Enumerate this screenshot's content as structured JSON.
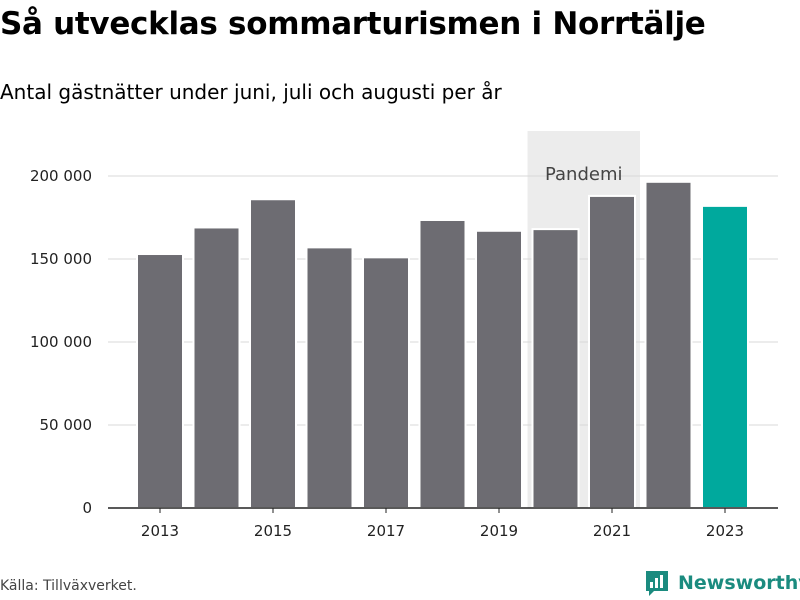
{
  "header": {
    "title": "Så utvecklas sommarturismen i Norrtälje",
    "subtitle": "Antal gästnätter under juni, juli och augusti per år"
  },
  "footer": {
    "source": "Källa: Tillväxverket.",
    "brand": "Newsworthy"
  },
  "colors": {
    "bar": "#6d6c72",
    "highlight": "#00a99d",
    "pandemic_band": "#ececec",
    "grid": "#d9d9d9",
    "axis": "#222222",
    "brand": "#1b8b7f"
  },
  "chart_data": {
    "type": "bar",
    "title": "Så utvecklas sommarturismen i Norrtälje",
    "subtitle": "Antal gästnätter under juni, juli och augusti per år",
    "xlabel": "",
    "ylabel": "",
    "categories": [
      "2013",
      "2014",
      "2015",
      "2016",
      "2017",
      "2018",
      "2019",
      "2020",
      "2021",
      "2022",
      "2023"
    ],
    "values": [
      153000,
      169000,
      186000,
      157000,
      151000,
      173500,
      167000,
      168000,
      188000,
      196500,
      182000
    ],
    "highlight_index": 10,
    "ylim": [
      0,
      200000
    ],
    "yticks": [
      0,
      50000,
      100000,
      150000,
      200000
    ],
    "ytick_labels": [
      "0",
      "50 000",
      "100 000",
      "150 000",
      "200 000"
    ],
    "xtick_labels": [
      "2013",
      "2015",
      "2017",
      "2019",
      "2021",
      "2023"
    ],
    "annotation": {
      "label": "Pandemi",
      "from": "2020",
      "to": "2021"
    },
    "grid": true,
    "legend": "none"
  }
}
